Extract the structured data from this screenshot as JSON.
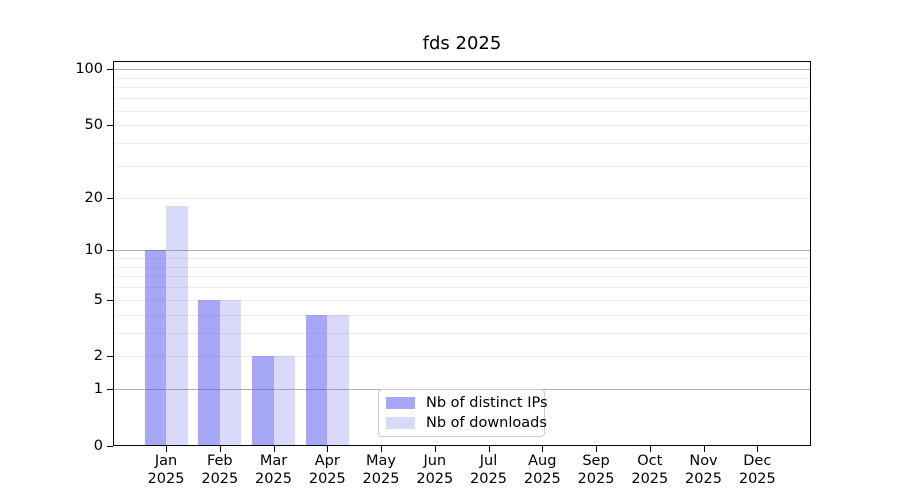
{
  "title": "fds 2025",
  "legend": {
    "items": [
      {
        "label": "Nb of distinct IPs"
      },
      {
        "label": "Nb of downloads"
      }
    ]
  },
  "colors": {
    "bar_distinct_ips": "rgba(80,80,240,0.5)",
    "bar_downloads": "rgba(120,120,235,0.28)",
    "swatch_distinct_ips": "#a7a7f7",
    "swatch_downloads": "#d9d9f9",
    "major_grid": "#b0b0b0",
    "minor_grid": "#ebebeb",
    "axis": "#000000",
    "background": "#ffffff"
  },
  "chart_data": {
    "type": "bar",
    "title": "fds 2025",
    "categories": [
      "Jan",
      "Feb",
      "Mar",
      "Apr",
      "May",
      "Jun",
      "Jul",
      "Aug",
      "Sep",
      "Oct",
      "Nov",
      "Dec"
    ],
    "category_year": "2025",
    "series": [
      {
        "name": "Nb of distinct IPs",
        "color": "#a7a7f7",
        "values": [
          10,
          5,
          2,
          4,
          0,
          0,
          0,
          0,
          0,
          0,
          0,
          0
        ]
      },
      {
        "name": "Nb of downloads",
        "color": "#d9d9f9",
        "values": [
          18,
          5,
          2,
          4,
          0,
          0,
          0,
          0,
          0,
          0,
          0,
          0
        ]
      }
    ],
    "xlabel": "",
    "ylabel": "",
    "yscale": "log1p",
    "ylim": [
      0,
      111
    ],
    "ytick_labels": [
      0,
      1,
      2,
      5,
      10,
      20,
      50,
      100
    ],
    "major_gridlines": [
      1,
      10,
      100
    ],
    "minor_gridlines": [
      2,
      3,
      4,
      5,
      6,
      7,
      8,
      9,
      20,
      30,
      40,
      50,
      60,
      70,
      80,
      90
    ],
    "grid": true,
    "legend_position": "lower center"
  }
}
